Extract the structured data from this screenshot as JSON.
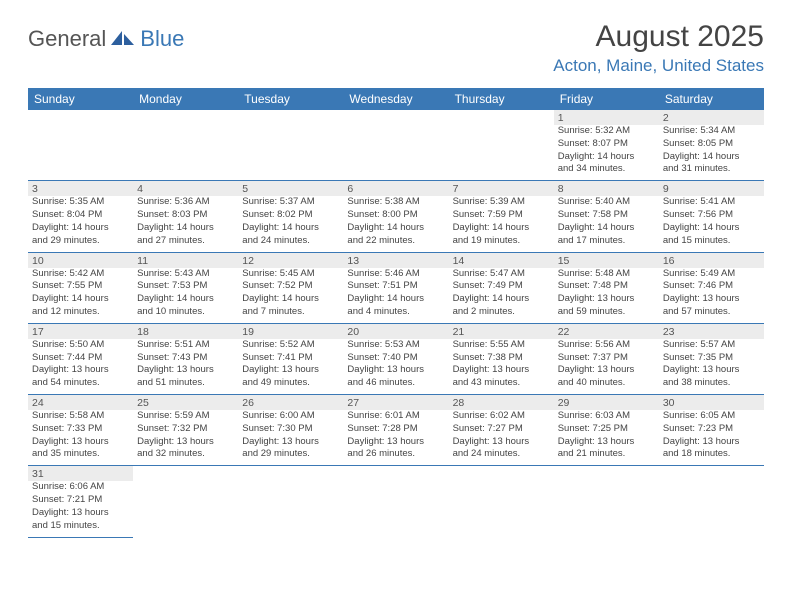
{
  "logo": {
    "word1": "General",
    "word2": "Blue"
  },
  "title": "August 2025",
  "location": "Acton, Maine, United States",
  "colors": {
    "header_bg": "#3a78b5",
    "header_text": "#ffffff",
    "daynum_bg": "#ececec",
    "border": "#3a78b5"
  },
  "daynames": [
    "Sunday",
    "Monday",
    "Tuesday",
    "Wednesday",
    "Thursday",
    "Friday",
    "Saturday"
  ],
  "weeks": [
    [
      null,
      null,
      null,
      null,
      null,
      {
        "n": "1",
        "sr": "Sunrise: 5:32 AM",
        "ss": "Sunset: 8:07 PM",
        "d1": "Daylight: 14 hours",
        "d2": "and 34 minutes."
      },
      {
        "n": "2",
        "sr": "Sunrise: 5:34 AM",
        "ss": "Sunset: 8:05 PM",
        "d1": "Daylight: 14 hours",
        "d2": "and 31 minutes."
      }
    ],
    [
      {
        "n": "3",
        "sr": "Sunrise: 5:35 AM",
        "ss": "Sunset: 8:04 PM",
        "d1": "Daylight: 14 hours",
        "d2": "and 29 minutes."
      },
      {
        "n": "4",
        "sr": "Sunrise: 5:36 AM",
        "ss": "Sunset: 8:03 PM",
        "d1": "Daylight: 14 hours",
        "d2": "and 27 minutes."
      },
      {
        "n": "5",
        "sr": "Sunrise: 5:37 AM",
        "ss": "Sunset: 8:02 PM",
        "d1": "Daylight: 14 hours",
        "d2": "and 24 minutes."
      },
      {
        "n": "6",
        "sr": "Sunrise: 5:38 AM",
        "ss": "Sunset: 8:00 PM",
        "d1": "Daylight: 14 hours",
        "d2": "and 22 minutes."
      },
      {
        "n": "7",
        "sr": "Sunrise: 5:39 AM",
        "ss": "Sunset: 7:59 PM",
        "d1": "Daylight: 14 hours",
        "d2": "and 19 minutes."
      },
      {
        "n": "8",
        "sr": "Sunrise: 5:40 AM",
        "ss": "Sunset: 7:58 PM",
        "d1": "Daylight: 14 hours",
        "d2": "and 17 minutes."
      },
      {
        "n": "9",
        "sr": "Sunrise: 5:41 AM",
        "ss": "Sunset: 7:56 PM",
        "d1": "Daylight: 14 hours",
        "d2": "and 15 minutes."
      }
    ],
    [
      {
        "n": "10",
        "sr": "Sunrise: 5:42 AM",
        "ss": "Sunset: 7:55 PM",
        "d1": "Daylight: 14 hours",
        "d2": "and 12 minutes."
      },
      {
        "n": "11",
        "sr": "Sunrise: 5:43 AM",
        "ss": "Sunset: 7:53 PM",
        "d1": "Daylight: 14 hours",
        "d2": "and 10 minutes."
      },
      {
        "n": "12",
        "sr": "Sunrise: 5:45 AM",
        "ss": "Sunset: 7:52 PM",
        "d1": "Daylight: 14 hours",
        "d2": "and 7 minutes."
      },
      {
        "n": "13",
        "sr": "Sunrise: 5:46 AM",
        "ss": "Sunset: 7:51 PM",
        "d1": "Daylight: 14 hours",
        "d2": "and 4 minutes."
      },
      {
        "n": "14",
        "sr": "Sunrise: 5:47 AM",
        "ss": "Sunset: 7:49 PM",
        "d1": "Daylight: 14 hours",
        "d2": "and 2 minutes."
      },
      {
        "n": "15",
        "sr": "Sunrise: 5:48 AM",
        "ss": "Sunset: 7:48 PM",
        "d1": "Daylight: 13 hours",
        "d2": "and 59 minutes."
      },
      {
        "n": "16",
        "sr": "Sunrise: 5:49 AM",
        "ss": "Sunset: 7:46 PM",
        "d1": "Daylight: 13 hours",
        "d2": "and 57 minutes."
      }
    ],
    [
      {
        "n": "17",
        "sr": "Sunrise: 5:50 AM",
        "ss": "Sunset: 7:44 PM",
        "d1": "Daylight: 13 hours",
        "d2": "and 54 minutes."
      },
      {
        "n": "18",
        "sr": "Sunrise: 5:51 AM",
        "ss": "Sunset: 7:43 PM",
        "d1": "Daylight: 13 hours",
        "d2": "and 51 minutes."
      },
      {
        "n": "19",
        "sr": "Sunrise: 5:52 AM",
        "ss": "Sunset: 7:41 PM",
        "d1": "Daylight: 13 hours",
        "d2": "and 49 minutes."
      },
      {
        "n": "20",
        "sr": "Sunrise: 5:53 AM",
        "ss": "Sunset: 7:40 PM",
        "d1": "Daylight: 13 hours",
        "d2": "and 46 minutes."
      },
      {
        "n": "21",
        "sr": "Sunrise: 5:55 AM",
        "ss": "Sunset: 7:38 PM",
        "d1": "Daylight: 13 hours",
        "d2": "and 43 minutes."
      },
      {
        "n": "22",
        "sr": "Sunrise: 5:56 AM",
        "ss": "Sunset: 7:37 PM",
        "d1": "Daylight: 13 hours",
        "d2": "and 40 minutes."
      },
      {
        "n": "23",
        "sr": "Sunrise: 5:57 AM",
        "ss": "Sunset: 7:35 PM",
        "d1": "Daylight: 13 hours",
        "d2": "and 38 minutes."
      }
    ],
    [
      {
        "n": "24",
        "sr": "Sunrise: 5:58 AM",
        "ss": "Sunset: 7:33 PM",
        "d1": "Daylight: 13 hours",
        "d2": "and 35 minutes."
      },
      {
        "n": "25",
        "sr": "Sunrise: 5:59 AM",
        "ss": "Sunset: 7:32 PM",
        "d1": "Daylight: 13 hours",
        "d2": "and 32 minutes."
      },
      {
        "n": "26",
        "sr": "Sunrise: 6:00 AM",
        "ss": "Sunset: 7:30 PM",
        "d1": "Daylight: 13 hours",
        "d2": "and 29 minutes."
      },
      {
        "n": "27",
        "sr": "Sunrise: 6:01 AM",
        "ss": "Sunset: 7:28 PM",
        "d1": "Daylight: 13 hours",
        "d2": "and 26 minutes."
      },
      {
        "n": "28",
        "sr": "Sunrise: 6:02 AM",
        "ss": "Sunset: 7:27 PM",
        "d1": "Daylight: 13 hours",
        "d2": "and 24 minutes."
      },
      {
        "n": "29",
        "sr": "Sunrise: 6:03 AM",
        "ss": "Sunset: 7:25 PM",
        "d1": "Daylight: 13 hours",
        "d2": "and 21 minutes."
      },
      {
        "n": "30",
        "sr": "Sunrise: 6:05 AM",
        "ss": "Sunset: 7:23 PM",
        "d1": "Daylight: 13 hours",
        "d2": "and 18 minutes."
      }
    ],
    [
      {
        "n": "31",
        "sr": "Sunrise: 6:06 AM",
        "ss": "Sunset: 7:21 PM",
        "d1": "Daylight: 13 hours",
        "d2": "and 15 minutes."
      },
      null,
      null,
      null,
      null,
      null,
      null
    ]
  ]
}
